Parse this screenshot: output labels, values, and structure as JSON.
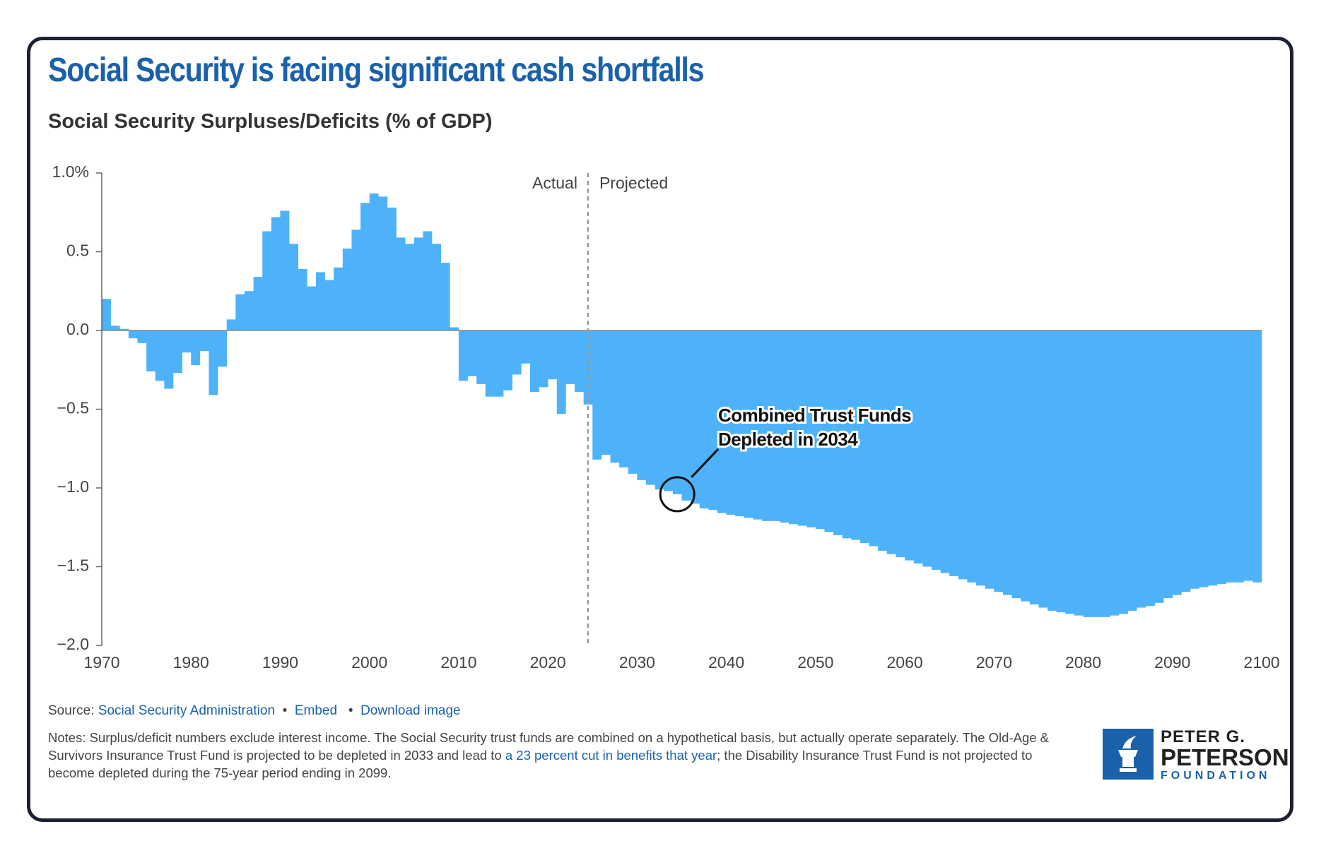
{
  "header": {
    "title": "Social Security is facing significant cash shortfalls"
  },
  "chart_data": {
    "type": "bar",
    "title": "Social Security Surpluses/Deficits (% of GDP)",
    "x": [
      1970,
      1971,
      1972,
      1973,
      1974,
      1975,
      1976,
      1977,
      1978,
      1979,
      1980,
      1981,
      1982,
      1983,
      1984,
      1985,
      1986,
      1987,
      1988,
      1989,
      1990,
      1991,
      1992,
      1993,
      1994,
      1995,
      1996,
      1997,
      1998,
      1999,
      2000,
      2001,
      2002,
      2003,
      2004,
      2005,
      2006,
      2007,
      2008,
      2009,
      2010,
      2011,
      2012,
      2013,
      2014,
      2015,
      2016,
      2017,
      2018,
      2019,
      2020,
      2021,
      2022,
      2023,
      2024,
      2025,
      2026,
      2027,
      2028,
      2029,
      2030,
      2031,
      2032,
      2033,
      2034,
      2035,
      2036,
      2037,
      2038,
      2039,
      2040,
      2041,
      2042,
      2043,
      2044,
      2045,
      2046,
      2047,
      2048,
      2049,
      2050,
      2051,
      2052,
      2053,
      2054,
      2055,
      2056,
      2057,
      2058,
      2059,
      2060,
      2061,
      2062,
      2063,
      2064,
      2065,
      2066,
      2067,
      2068,
      2069,
      2070,
      2071,
      2072,
      2073,
      2074,
      2075,
      2076,
      2077,
      2078,
      2079,
      2080,
      2081,
      2082,
      2083,
      2084,
      2085,
      2086,
      2087,
      2088,
      2089,
      2090,
      2091,
      2092,
      2093,
      2094,
      2095,
      2096,
      2097,
      2098,
      2099
    ],
    "values": [
      0.2,
      0.03,
      0.01,
      -0.05,
      -0.08,
      -0.26,
      -0.32,
      -0.37,
      -0.27,
      -0.14,
      -0.22,
      -0.13,
      -0.41,
      -0.23,
      0.07,
      0.23,
      0.25,
      0.34,
      0.63,
      0.72,
      0.76,
      0.55,
      0.39,
      0.28,
      0.37,
      0.32,
      0.4,
      0.52,
      0.64,
      0.81,
      0.87,
      0.85,
      0.78,
      0.59,
      0.55,
      0.59,
      0.63,
      0.55,
      0.43,
      0.02,
      -0.32,
      -0.29,
      -0.34,
      -0.42,
      -0.42,
      -0.38,
      -0.28,
      -0.21,
      -0.39,
      -0.36,
      -0.31,
      -0.53,
      -0.34,
      -0.39,
      -0.47,
      -0.82,
      -0.79,
      -0.84,
      -0.87,
      -0.91,
      -0.95,
      -0.98,
      -1.01,
      -1.02,
      -1.04,
      -1.08,
      -1.1,
      -1.13,
      -1.14,
      -1.16,
      -1.17,
      -1.18,
      -1.19,
      -1.2,
      -1.21,
      -1.21,
      -1.22,
      -1.23,
      -1.24,
      -1.25,
      -1.26,
      -1.28,
      -1.3,
      -1.32,
      -1.33,
      -1.35,
      -1.37,
      -1.4,
      -1.42,
      -1.44,
      -1.46,
      -1.48,
      -1.5,
      -1.52,
      -1.54,
      -1.56,
      -1.58,
      -1.6,
      -1.62,
      -1.64,
      -1.66,
      -1.68,
      -1.7,
      -1.72,
      -1.74,
      -1.76,
      -1.78,
      -1.79,
      -1.8,
      -1.81,
      -1.82,
      -1.82,
      -1.82,
      -1.81,
      -1.8,
      -1.78,
      -1.76,
      -1.75,
      -1.73,
      -1.7,
      -1.68,
      -1.66,
      -1.64,
      -1.63,
      -1.62,
      -1.61,
      -1.6,
      -1.6,
      -1.59,
      -1.6
    ],
    "color": "#4db2f9",
    "xlim": [
      1970,
      2100
    ],
    "xticks": [
      1970,
      1980,
      1990,
      2000,
      2010,
      2020,
      2030,
      2040,
      2050,
      2060,
      2070,
      2080,
      2090,
      2100
    ],
    "ylim": [
      -2,
      1
    ],
    "yticks": [
      {
        "value": 1,
        "label": "1.0%"
      },
      0.5,
      {
        "value": 0,
        "label": "0.0"
      },
      {
        "value": -0.5,
        "label": "−0.5"
      },
      {
        "value": -1,
        "label": "−1.0"
      },
      {
        "value": -1.5,
        "label": "−1.5"
      },
      {
        "value": -2,
        "label": "−2.0"
      }
    ],
    "divider": {
      "x": 2024.5,
      "left_label": "Actual",
      "right_label": "Projected"
    },
    "annotation": {
      "lines": [
        "Combined Trust Funds",
        "Depleted in 2034"
      ],
      "x": 2034
    }
  },
  "source": {
    "label": "Source:",
    "link": "Social Security Administration",
    "embed": "Embed",
    "download": "Download image"
  },
  "notes": {
    "before": "Notes: Surplus/deficit numbers exclude interest income. The Social Security trust funds are combined on a hypothetical basis, but actually operate separately. The Old-Age & Survivors Insurance Trust Fund is projected to be depleted in 2033 and lead to ",
    "link": "a 23 percent cut in benefits that year",
    "after": "; the Disability Insurance Trust Fund is not projected to become depleted during the 75-year period ending in 2099."
  },
  "logo": {
    "line1": "PETER G.",
    "line2": "PETERSON",
    "line3": "FOUNDATION"
  }
}
